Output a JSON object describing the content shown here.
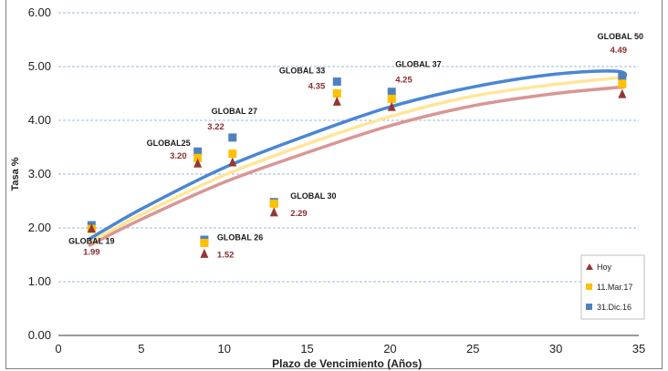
{
  "chart_data": {
    "type": "scatter",
    "title": "",
    "xlabel": "Plazo de Vencimiento (Años)",
    "ylabel": "Tasa %",
    "xlim": [
      0,
      35
    ],
    "ylim": [
      0,
      6
    ],
    "x_ticks": [
      "0",
      "5",
      "10",
      "15",
      "20",
      "25",
      "30",
      "35"
    ],
    "y_ticks": [
      "0.00",
      "1.00",
      "2.00",
      "3.00",
      "4.00",
      "5.00",
      "6.00"
    ],
    "grid": true,
    "legend_position": "bottom-right",
    "series": [
      {
        "name": "Hoy",
        "color": "#953735",
        "marker": "triangle",
        "points": [
          {
            "x": 2.0,
            "y": 1.99
          },
          {
            "x": 8.4,
            "y": 3.2
          },
          {
            "x": 8.8,
            "y": 1.52
          },
          {
            "x": 10.5,
            "y": 3.22
          },
          {
            "x": 13.0,
            "y": 2.29
          },
          {
            "x": 16.8,
            "y": 4.35
          },
          {
            "x": 20.1,
            "y": 4.25
          },
          {
            "x": 34.0,
            "y": 4.49
          }
        ],
        "trend": [
          [
            1.9,
            1.68
          ],
          [
            5,
            2.16
          ],
          [
            10,
            2.85
          ],
          [
            15,
            3.4
          ],
          [
            20,
            3.9
          ],
          [
            25,
            4.27
          ],
          [
            30,
            4.5
          ],
          [
            34.1,
            4.62
          ]
        ],
        "trend_color": "#d99694"
      },
      {
        "name": "11.Mar.17",
        "color": "#ffc000",
        "marker": "square",
        "points": [
          {
            "x": 2.0,
            "y": 1.98
          },
          {
            "x": 8.4,
            "y": 3.3
          },
          {
            "x": 8.8,
            "y": 1.72
          },
          {
            "x": 10.5,
            "y": 3.38
          },
          {
            "x": 13.0,
            "y": 2.45
          },
          {
            "x": 16.8,
            "y": 4.5
          },
          {
            "x": 20.1,
            "y": 4.4
          },
          {
            "x": 34.0,
            "y": 4.68
          }
        ],
        "trend": [
          [
            1.9,
            1.73
          ],
          [
            5,
            2.25
          ],
          [
            10,
            2.98
          ],
          [
            15,
            3.56
          ],
          [
            20,
            4.07
          ],
          [
            25,
            4.45
          ],
          [
            30,
            4.67
          ],
          [
            34.1,
            4.8
          ]
        ],
        "trend_color": "#ffe699"
      },
      {
        "name": "31.Dic.16",
        "color": "#4f81bd",
        "marker": "square",
        "points": [
          {
            "x": 2.0,
            "y": 2.05
          },
          {
            "x": 8.4,
            "y": 3.42
          },
          {
            "x": 8.8,
            "y": 1.78
          },
          {
            "x": 10.5,
            "y": 3.68
          },
          {
            "x": 13.0,
            "y": 2.48
          },
          {
            "x": 16.8,
            "y": 4.72
          },
          {
            "x": 20.1,
            "y": 4.53
          },
          {
            "x": 34.0,
            "y": 4.82
          }
        ],
        "trend": [
          [
            1.9,
            1.8
          ],
          [
            5,
            2.35
          ],
          [
            10,
            3.12
          ],
          [
            15,
            3.72
          ],
          [
            20,
            4.25
          ],
          [
            25,
            4.62
          ],
          [
            30,
            4.86
          ],
          [
            33.8,
            4.91
          ],
          [
            34.1,
            4.75
          ]
        ],
        "trend_color": "#4a86d4"
      }
    ],
    "point_labels": [
      {
        "name": "GLOBAL 19",
        "value": "1.99",
        "x": 2.0,
        "y": 1.99
      },
      {
        "name": "GLOBAL25",
        "value": "3.20",
        "x": 8.4,
        "y": 3.2
      },
      {
        "name": "GLOBAL 26",
        "value": "1.52",
        "x": 8.8,
        "y": 1.52
      },
      {
        "name": "GLOBAL 27",
        "value": "3.22",
        "x": 10.5,
        "y": 3.22
      },
      {
        "name": "GLOBAL 30",
        "value": "2.29",
        "x": 13.0,
        "y": 2.29
      },
      {
        "name": "GLOBAL 33",
        "value": "4.35",
        "x": 16.8,
        "y": 4.35
      },
      {
        "name": "GLOBAL 37",
        "value": "4.25",
        "x": 20.1,
        "y": 4.25
      },
      {
        "name": "GLOBAL 50",
        "value": "4.49",
        "x": 34.0,
        "y": 4.49
      }
    ]
  }
}
